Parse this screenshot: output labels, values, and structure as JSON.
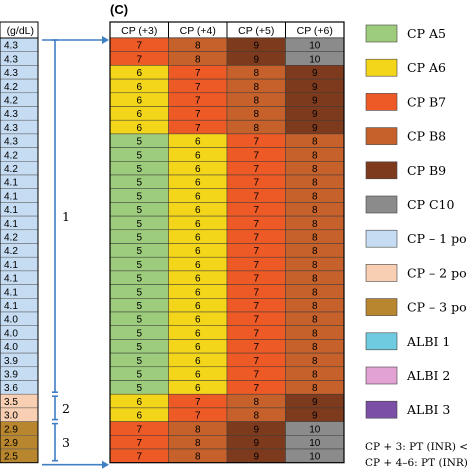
{
  "chart_data": {
    "type": "heatmap",
    "panel_label": "(C)",
    "left_panel": {
      "header": "(g/dL)",
      "values": [
        "4.3",
        "4.3",
        "4.3",
        "4.2",
        "4.2",
        "4.3",
        "4.3",
        "4.3",
        "4.2",
        "4.2",
        "4.1",
        "4.1",
        "4.1",
        "4.1",
        "4.2",
        "4.2",
        "4.1",
        "4.1",
        "4.1",
        "4.1",
        "4.0",
        "4.0",
        "4.0",
        "3.9",
        "3.9",
        "3.6",
        "3.5",
        "3.0",
        "2.9",
        "2.9",
        "2.5"
      ],
      "brace_labels": [
        "1",
        "2",
        "3"
      ]
    },
    "columns": [
      "CP (+3)",
      "CP (+4)",
      "CP (+5)",
      "CP (+6)"
    ],
    "rows": [
      [
        "7",
        "8",
        "9",
        "10"
      ],
      [
        "7",
        "8",
        "9",
        "10"
      ],
      [
        "6",
        "7",
        "8",
        "9"
      ],
      [
        "6",
        "7",
        "8",
        "9"
      ],
      [
        "6",
        "7",
        "8",
        "9"
      ],
      [
        "6",
        "7",
        "8",
        "9"
      ],
      [
        "6",
        "7",
        "8",
        "9"
      ],
      [
        "5",
        "6",
        "7",
        "8"
      ],
      [
        "5",
        "6",
        "7",
        "8"
      ],
      [
        "5",
        "6",
        "7",
        "8"
      ],
      [
        "5",
        "6",
        "7",
        "8"
      ],
      [
        "5",
        "6",
        "7",
        "8"
      ],
      [
        "5",
        "6",
        "7",
        "8"
      ],
      [
        "5",
        "6",
        "7",
        "8"
      ],
      [
        "5",
        "6",
        "7",
        "8"
      ],
      [
        "5",
        "6",
        "7",
        "8"
      ],
      [
        "5",
        "6",
        "7",
        "8"
      ],
      [
        "5",
        "6",
        "7",
        "8"
      ],
      [
        "5",
        "6",
        "7",
        "8"
      ],
      [
        "5",
        "6",
        "7",
        "8"
      ],
      [
        "5",
        "6",
        "7",
        "8"
      ],
      [
        "5",
        "6",
        "7",
        "8"
      ],
      [
        "5",
        "6",
        "7",
        "8"
      ],
      [
        "5",
        "6",
        "7",
        "8"
      ],
      [
        "5",
        "6",
        "7",
        "8"
      ],
      [
        "5",
        "6",
        "7",
        "8"
      ],
      [
        "6",
        "7",
        "8",
        "9"
      ],
      [
        "6",
        "7",
        "8",
        "9"
      ],
      [
        "7",
        "8",
        "9",
        "10"
      ],
      [
        "7",
        "8",
        "9",
        "10"
      ],
      [
        "7",
        "8",
        "9",
        "10"
      ]
    ],
    "score_colors": {
      "5": "#9dcc7c",
      "6": "#f3d61a",
      "7": "#ee5a26",
      "8": "#c6612c",
      "9": "#7e3a1d",
      "10": "#8b8b8b"
    },
    "legend": [
      {
        "label": "CP A5",
        "color": "#9dcc7c"
      },
      {
        "label": "CP A6",
        "color": "#f3d61a"
      },
      {
        "label": "CP B7",
        "color": "#ee5a26"
      },
      {
        "label": "CP B8",
        "color": "#c6612c"
      },
      {
        "label": "CP B9",
        "color": "#7e3a1d"
      },
      {
        "label": "CP C10",
        "color": "#8b8b8b"
      },
      {
        "label": "CP – 1 po",
        "color": "#c5dcf2"
      },
      {
        "label": "CP – 2 po",
        "color": "#f8cfb2"
      },
      {
        "label": "CP – 3 po",
        "color": "#b8862e"
      },
      {
        "label": "ALBI 1",
        "color": "#6ecbe0"
      },
      {
        "label": "ALBI 2",
        "color": "#e2a2d4"
      },
      {
        "label": "ALBI 3",
        "color": "#7c4fa6"
      }
    ],
    "footnotes": [
      "CP + 3: PT (INR) <",
      "CP + 4–6: PT (INR)"
    ],
    "albumin_group_colors": {
      "1": "#c5dcf2",
      "2": "#f8cfb2",
      "3": "#b8862e"
    },
    "arrow_color": "#3f7fc4"
  }
}
